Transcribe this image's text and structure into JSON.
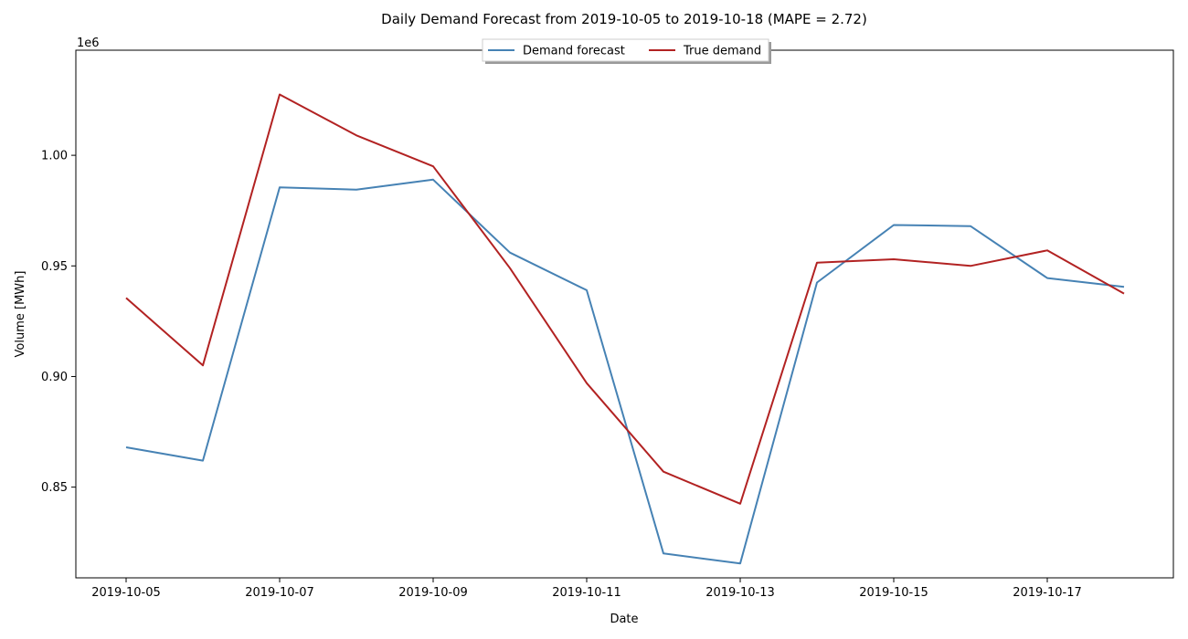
{
  "chart_data": {
    "type": "line",
    "title": "Daily Demand Forecast from 2019-10-05 to 2019-10-18 (MAPE = 2.72)",
    "xlabel": "Date",
    "ylabel": "Volume [MWh]",
    "y_offset_label": "1e6",
    "x_dates": [
      "2019-10-05",
      "2019-10-06",
      "2019-10-07",
      "2019-10-08",
      "2019-10-09",
      "2019-10-10",
      "2019-10-11",
      "2019-10-12",
      "2019-10-13",
      "2019-10-14",
      "2019-10-15",
      "2019-10-16",
      "2019-10-17",
      "2019-10-18"
    ],
    "x_ticks": [
      "2019-10-05",
      "2019-10-07",
      "2019-10-09",
      "2019-10-11",
      "2019-10-13",
      "2019-10-15",
      "2019-10-17"
    ],
    "y_ticks": [
      {
        "value": 0.85,
        "label": "0.85"
      },
      {
        "value": 0.9,
        "label": "0.90"
      },
      {
        "value": 0.95,
        "label": "0.95"
      },
      {
        "value": 1.0,
        "label": "1.00"
      }
    ],
    "ylim": [
      0.809,
      1.0475
    ],
    "y_unit_multiplier": 1000000,
    "grid": false,
    "legend_position": "top-center",
    "series": [
      {
        "name": "Demand forecast",
        "color": "#4682B4",
        "values": [
          0.868,
          0.862,
          0.9855,
          0.9845,
          0.989,
          0.956,
          0.939,
          0.82,
          0.8155,
          0.9425,
          0.9685,
          0.968,
          0.9445,
          0.9405
        ]
      },
      {
        "name": "True demand",
        "color": "#B22222",
        "values": [
          0.9355,
          0.905,
          1.0275,
          1.009,
          0.995,
          0.949,
          0.897,
          0.857,
          0.8425,
          0.9515,
          0.953,
          0.95,
          0.957,
          0.9375
        ]
      }
    ]
  }
}
